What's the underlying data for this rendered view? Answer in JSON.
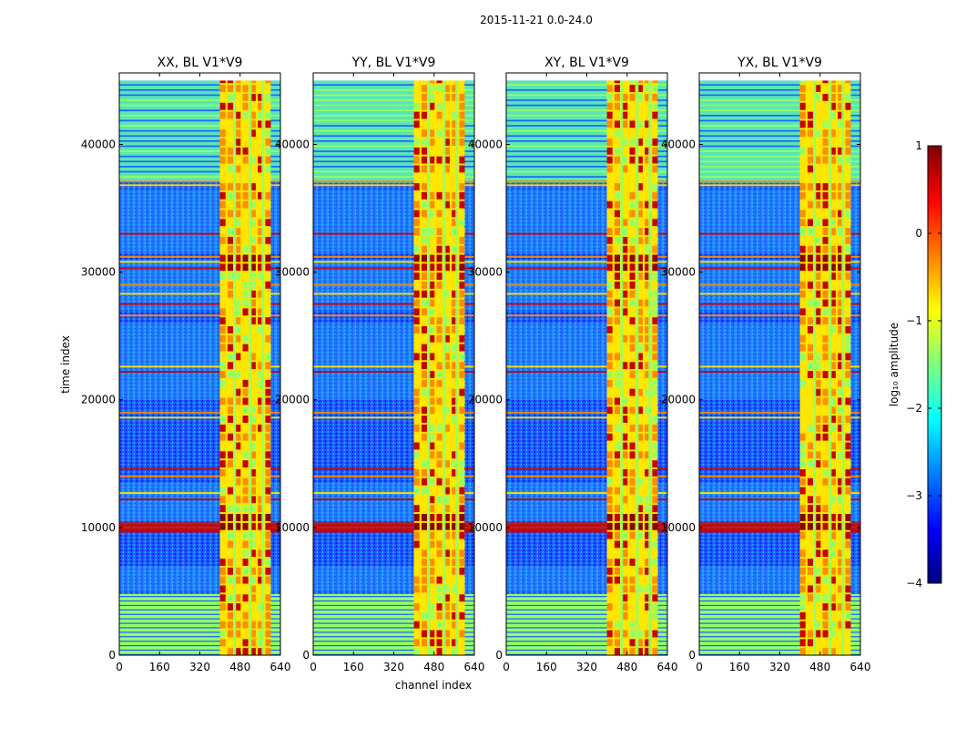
{
  "chart_data": {
    "type": "heatmap",
    "suptitle": "2015-11-21 0.0-24.0",
    "xlabel": "channel index",
    "ylabel": "time index",
    "xlim": [
      0,
      640
    ],
    "ylim": [
      0,
      45600
    ],
    "xticks": [
      "0",
      "160",
      "320",
      "480",
      "640"
    ],
    "yticks": [
      "0",
      "10000",
      "20000",
      "30000",
      "40000"
    ],
    "panels": [
      {
        "title": "XX, BL V1*V9"
      },
      {
        "title": "YY, BL V1*V9"
      },
      {
        "title": "XY, BL V1*V9"
      },
      {
        "title": "YX, BL V1*V9"
      }
    ],
    "colorbar": {
      "label": "log₁₀ amplitude",
      "range": [
        -4,
        1
      ],
      "ticks": [
        "1",
        "0",
        "−1",
        "−2",
        "−3",
        "−4"
      ],
      "colormap": "jet"
    },
    "features": {
      "rfi_channel_band": [
        400,
        600
      ],
      "bright_time_bands": [
        [
          9500,
          10500
        ],
        [
          30200,
          31000
        ]
      ],
      "flagged_time_band": [
        36800,
        37200
      ]
    }
  },
  "colors": {
    "background_low": "#1e64ff",
    "background_mid": "#1ec8ff",
    "band_green": "#96ff64",
    "band_yellow": "#ffe600",
    "band_orange": "#ff8c00",
    "band_red": "#c80000",
    "axis": "#000000"
  }
}
